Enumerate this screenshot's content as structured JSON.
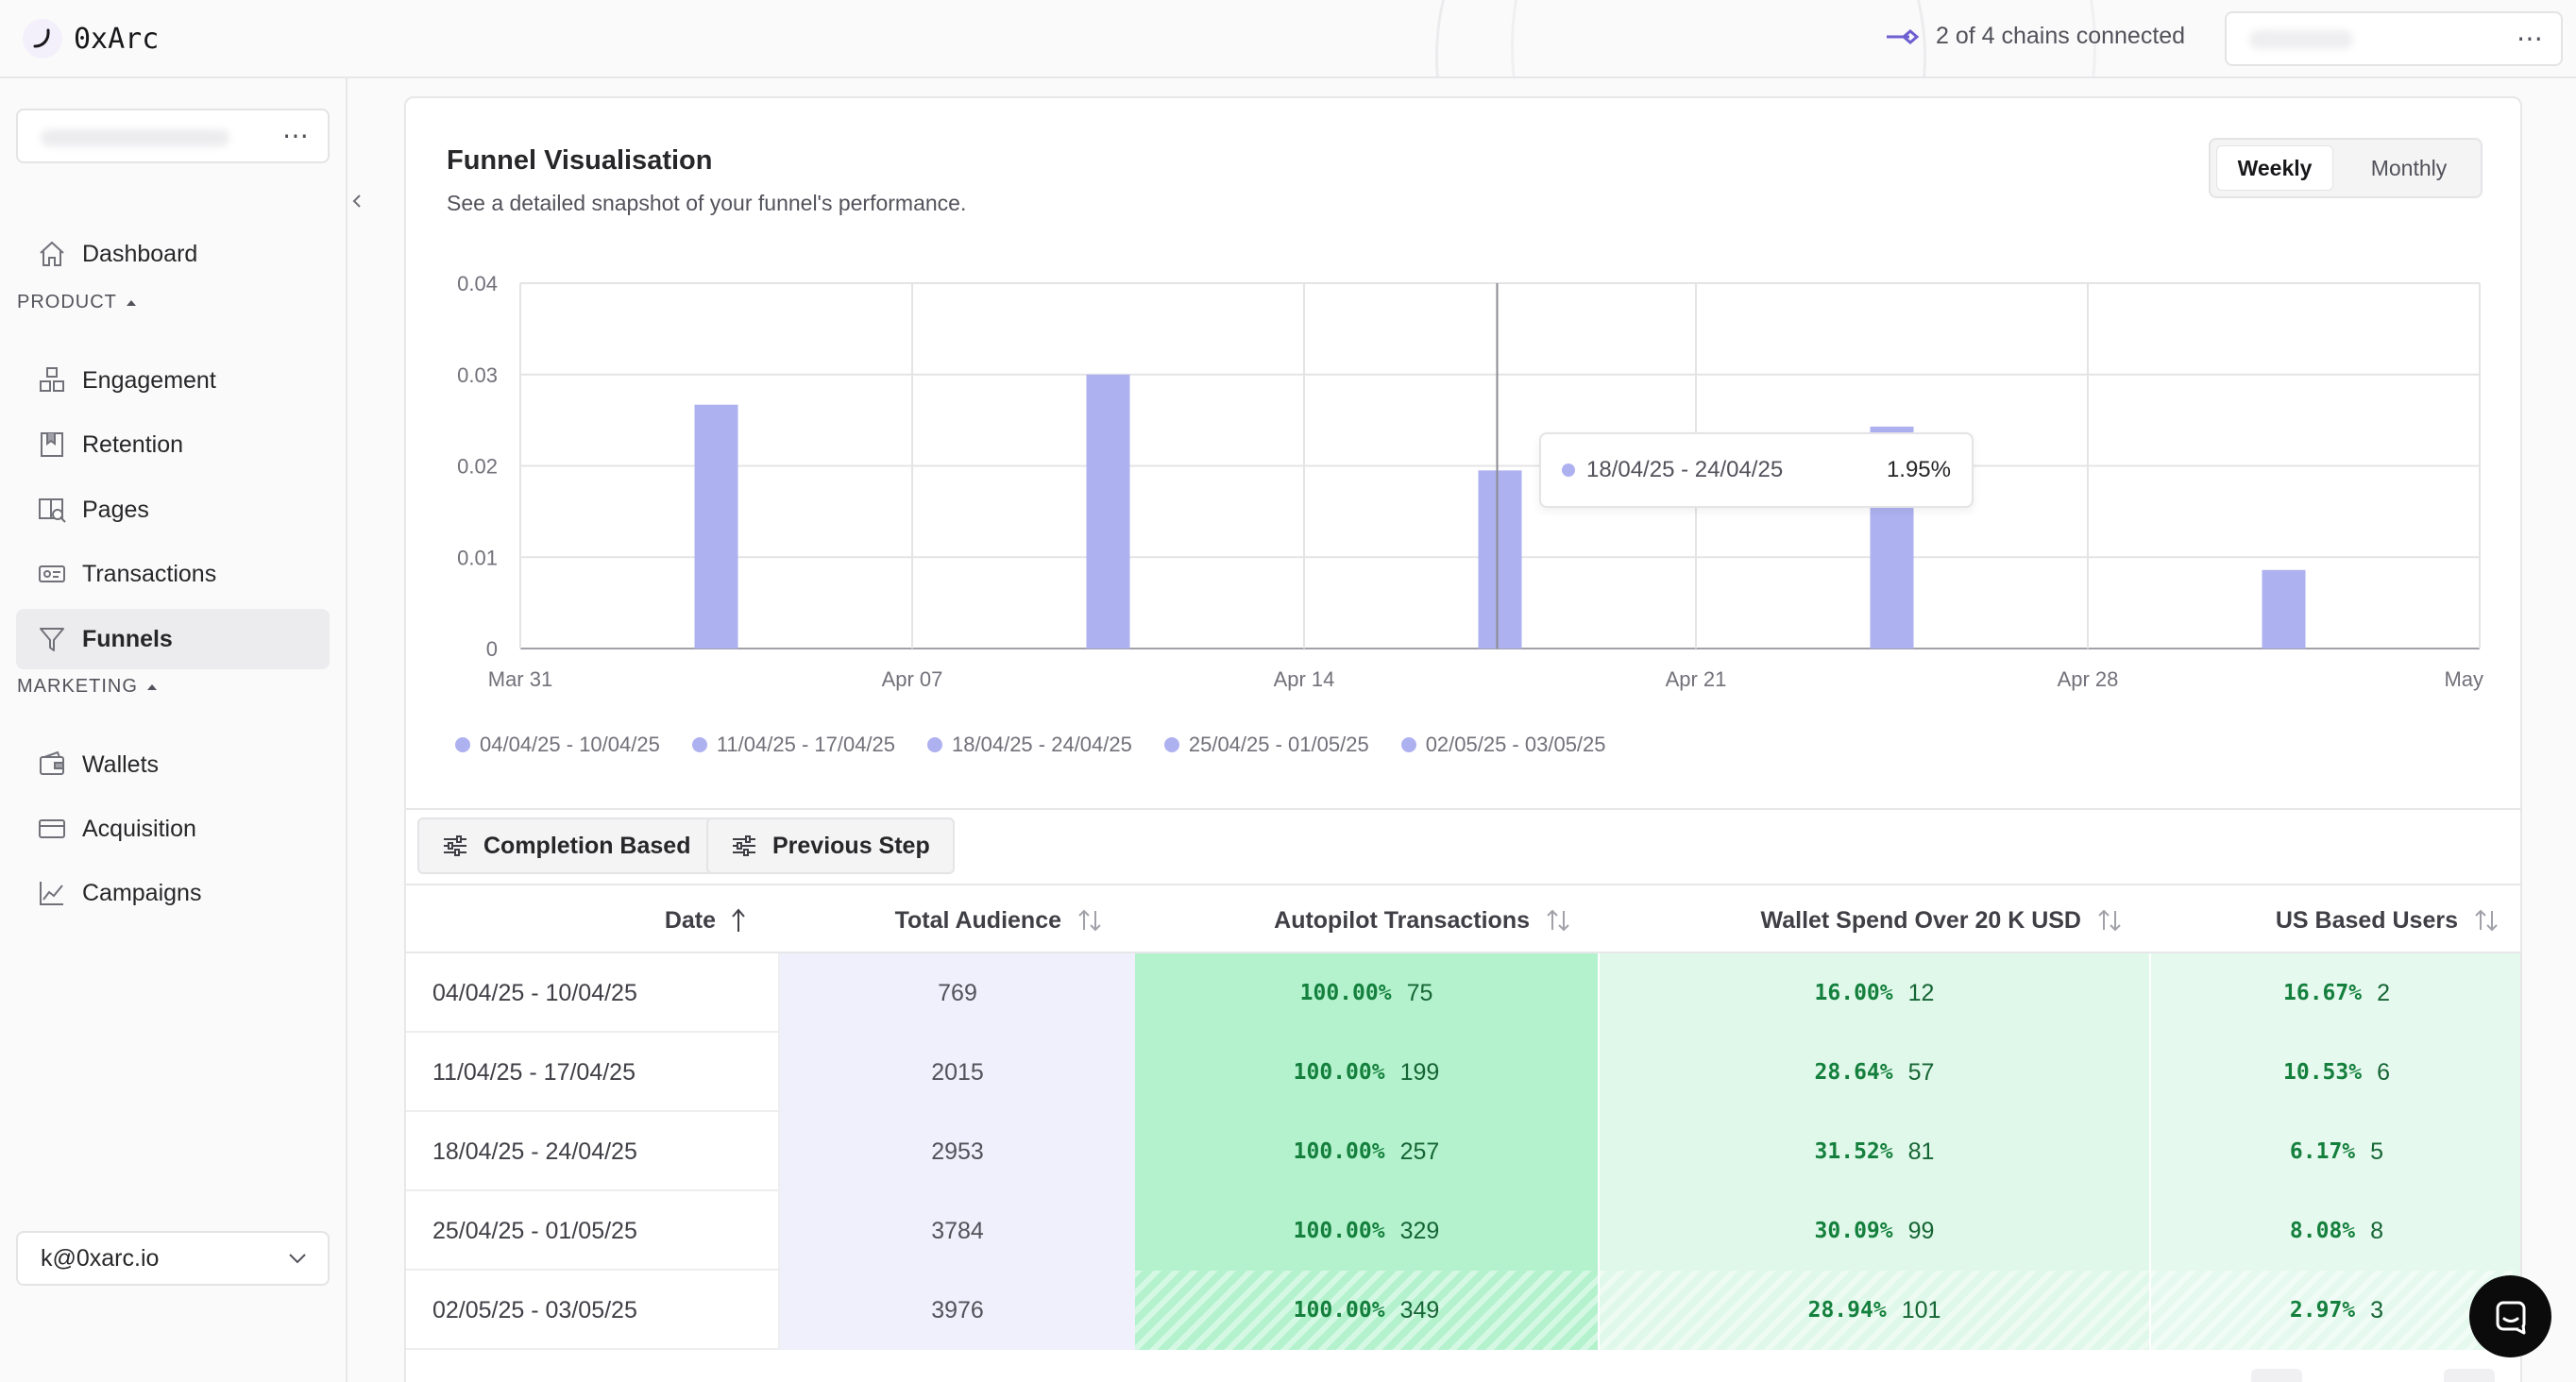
{
  "app": {
    "title": "0xArc"
  },
  "header": {
    "chains_status": "2 of 4 chains connected"
  },
  "sidebar": {
    "nav_top": [
      {
        "label": "Dashboard",
        "icon": "home-icon"
      }
    ],
    "sections": [
      {
        "title": "PRODUCT",
        "items": [
          {
            "label": "Engagement",
            "icon": "blocks-icon"
          },
          {
            "label": "Retention",
            "icon": "bookmark-icon"
          },
          {
            "label": "Pages",
            "icon": "pages-search-icon"
          },
          {
            "label": "Transactions",
            "icon": "receipt-icon"
          },
          {
            "label": "Funnels",
            "icon": "funnel-icon",
            "active": true
          }
        ]
      },
      {
        "title": "MARKETING",
        "items": [
          {
            "label": "Wallets",
            "icon": "wallet-icon"
          },
          {
            "label": "Acquisition",
            "icon": "card-icon"
          },
          {
            "label": "Campaigns",
            "icon": "trend-icon"
          }
        ]
      }
    ],
    "account_email": "k@0xarc.io"
  },
  "panel": {
    "title": "Funnel Visualisation",
    "subtitle": "See a detailed snapshot of your funnel's performance.",
    "period_options": [
      "Weekly",
      "Monthly"
    ],
    "period_selected": "Weekly",
    "tooltip": {
      "label": "18/04/25 - 24/04/25",
      "value": "1.95%"
    },
    "buttons": {
      "completion": "Completion Based",
      "previous": "Previous Step"
    }
  },
  "chart_data": {
    "type": "bar",
    "x_ticks": [
      "Mar 31",
      "Apr 07",
      "Apr 14",
      "Apr 21",
      "Apr 28",
      "May"
    ],
    "y_ticks": [
      "0.04",
      "0.03",
      "0.02",
      "0.01",
      "0"
    ],
    "ylim": [
      0,
      0.04
    ],
    "categories": [
      "04/04/25 - 10/04/25",
      "11/04/25 - 17/04/25",
      "18/04/25 - 24/04/25",
      "25/04/25 - 01/05/25",
      "02/05/25 - 03/05/25"
    ],
    "values": [
      0.0267,
      0.03,
      0.0195,
      0.0243,
      0.0086
    ],
    "bar_color": "#aeb1ef",
    "grid": true,
    "legend": "bottom-left"
  },
  "table": {
    "columns": [
      "Date",
      "Total Audience",
      "Autopilot Transactions",
      "Wallet Spend Over 20 K USD",
      "US Based Users"
    ],
    "rows": [
      {
        "date": "04/04/25 - 10/04/25",
        "audience": "769",
        "s1": {
          "pct": "100.00%",
          "n": "75"
        },
        "s2": {
          "pct": "16.00%",
          "n": "12"
        },
        "s3": {
          "pct": "16.67%",
          "n": "2"
        }
      },
      {
        "date": "11/04/25 - 17/04/25",
        "audience": "2015",
        "s1": {
          "pct": "100.00%",
          "n": "199"
        },
        "s2": {
          "pct": "28.64%",
          "n": "57"
        },
        "s3": {
          "pct": "10.53%",
          "n": "6"
        }
      },
      {
        "date": "18/04/25 - 24/04/25",
        "audience": "2953",
        "s1": {
          "pct": "100.00%",
          "n": "257"
        },
        "s2": {
          "pct": "31.52%",
          "n": "81"
        },
        "s3": {
          "pct": "6.17%",
          "n": "5"
        }
      },
      {
        "date": "25/04/25 - 01/05/25",
        "audience": "3784",
        "s1": {
          "pct": "100.00%",
          "n": "329"
        },
        "s2": {
          "pct": "30.09%",
          "n": "99"
        },
        "s3": {
          "pct": "8.08%",
          "n": "8"
        }
      },
      {
        "date": "02/05/25 - 03/05/25",
        "audience": "3976",
        "s1": {
          "pct": "100.00%",
          "n": "349"
        },
        "s2": {
          "pct": "28.94%",
          "n": "101"
        },
        "s3": {
          "pct": "2.97%",
          "n": "3"
        }
      }
    ]
  }
}
